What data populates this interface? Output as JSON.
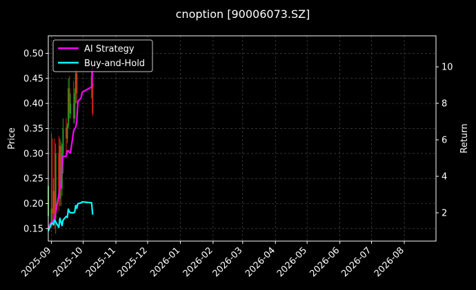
{
  "chart_data": {
    "type": "line",
    "title": "cnoption [90006073.SZ]",
    "ylabel": "Price",
    "y2label": "Return",
    "ylim": [
      0.125,
      0.535
    ],
    "y2lim": [
      0.45,
      11.7
    ],
    "xlim": [
      "2025-08-29",
      "2026-08-31"
    ],
    "background": "#000000",
    "grid": true,
    "legend_position": "top-left",
    "yticks": [
      0.15,
      0.2,
      0.25,
      0.3,
      0.35,
      0.4,
      0.45,
      0.5
    ],
    "y2ticks": [
      2,
      4,
      6,
      8,
      10
    ],
    "xticks": [
      "2025-09",
      "2025-10",
      "2025-11",
      "2025-12",
      "2026-01",
      "2026-02",
      "2026-03",
      "2026-04",
      "2026-05",
      "2026-06",
      "2026-07",
      "2026-08"
    ],
    "xtick_dates": [
      "2025-09-01",
      "2025-10-01",
      "2025-11-01",
      "2025-12-01",
      "2026-01-01",
      "2026-02-01",
      "2026-03-01",
      "2026-04-01",
      "2026-05-01",
      "2026-06-01",
      "2026-07-01",
      "2026-08-01"
    ],
    "candles": [
      {
        "date": "2025-08-29",
        "open": 0.175,
        "high": 0.245,
        "low": 0.155,
        "close": 0.235
      },
      {
        "date": "2025-09-01",
        "open": 0.165,
        "high": 0.34,
        "low": 0.16,
        "close": 0.19
      },
      {
        "date": "2025-09-02",
        "open": 0.19,
        "high": 0.33,
        "low": 0.155,
        "close": 0.18
      },
      {
        "date": "2025-09-03",
        "open": 0.18,
        "high": 0.25,
        "low": 0.165,
        "close": 0.225
      },
      {
        "date": "2025-09-04",
        "open": 0.225,
        "high": 0.33,
        "low": 0.15,
        "close": 0.165
      },
      {
        "date": "2025-09-05",
        "open": 0.17,
        "high": 0.32,
        "low": 0.14,
        "close": 0.3
      },
      {
        "date": "2025-09-08",
        "open": 0.3,
        "high": 0.335,
        "low": 0.185,
        "close": 0.21
      },
      {
        "date": "2025-09-09",
        "open": 0.21,
        "high": 0.33,
        "low": 0.195,
        "close": 0.315
      },
      {
        "date": "2025-09-10",
        "open": 0.315,
        "high": 0.325,
        "low": 0.195,
        "close": 0.23
      },
      {
        "date": "2025-09-11",
        "open": 0.23,
        "high": 0.32,
        "low": 0.215,
        "close": 0.3
      },
      {
        "date": "2025-09-12",
        "open": 0.3,
        "high": 0.37,
        "low": 0.26,
        "close": 0.35
      },
      {
        "date": "2025-09-15",
        "open": 0.35,
        "high": 0.37,
        "low": 0.3,
        "close": 0.33
      },
      {
        "date": "2025-09-16",
        "open": 0.33,
        "high": 0.36,
        "low": 0.32,
        "close": 0.355
      },
      {
        "date": "2025-09-17",
        "open": 0.355,
        "high": 0.45,
        "low": 0.35,
        "close": 0.43
      },
      {
        "date": "2025-09-18",
        "open": 0.43,
        "high": 0.455,
        "low": 0.37,
        "close": 0.38
      },
      {
        "date": "2025-09-19",
        "open": 0.38,
        "high": 0.42,
        "low": 0.37,
        "close": 0.4
      },
      {
        "date": "2025-09-22",
        "open": 0.4,
        "high": 0.445,
        "low": 0.36,
        "close": 0.37
      },
      {
        "date": "2025-09-23",
        "open": 0.37,
        "high": 0.43,
        "low": 0.36,
        "close": 0.42
      },
      {
        "date": "2025-09-24",
        "open": 0.42,
        "high": 0.47,
        "low": 0.4,
        "close": 0.46
      },
      {
        "date": "2025-09-25",
        "open": 0.46,
        "high": 0.465,
        "low": 0.4,
        "close": 0.42
      },
      {
        "date": "2025-10-09",
        "open": 0.43,
        "high": 0.465,
        "low": 0.41,
        "close": 0.455
      },
      {
        "date": "2025-10-10",
        "open": 0.44,
        "high": 0.45,
        "low": 0.375,
        "close": 0.38
      }
    ],
    "series": [
      {
        "name": "AI Strategy",
        "color": "#ff00ff",
        "x": [
          "2025-08-29",
          "2025-09-01",
          "2025-09-02",
          "2025-09-03",
          "2025-09-04",
          "2025-09-05",
          "2025-09-08",
          "2025-09-09",
          "2025-09-10",
          "2025-09-11",
          "2025-09-12",
          "2025-09-15",
          "2025-09-16",
          "2025-09-17",
          "2025-09-18",
          "2025-09-19",
          "2025-09-22",
          "2025-09-23",
          "2025-09-24",
          "2025-09-25",
          "2025-09-26",
          "2025-09-29",
          "2025-09-30",
          "2025-10-09",
          "2025-10-10"
        ],
        "values": [
          1.2,
          1.5,
          1.55,
          1.55,
          1.7,
          2.0,
          3.0,
          3.4,
          3.5,
          4.7,
          5.1,
          5.1,
          5.4,
          5.4,
          5.3,
          5.3,
          6.5,
          6.6,
          6.7,
          7.0,
          8.1,
          8.3,
          8.6,
          8.9,
          10.0
        ]
      },
      {
        "name": "Buy-and-Hold",
        "color": "#00ffff",
        "x": [
          "2025-08-29",
          "2025-09-01",
          "2025-09-02",
          "2025-09-03",
          "2025-09-04",
          "2025-09-05",
          "2025-09-08",
          "2025-09-09",
          "2025-09-10",
          "2025-09-11",
          "2025-09-12",
          "2025-09-15",
          "2025-09-16",
          "2025-09-17",
          "2025-09-18",
          "2025-09-19",
          "2025-09-22",
          "2025-09-23",
          "2025-09-24",
          "2025-09-25",
          "2025-09-26",
          "2025-09-29",
          "2025-09-30",
          "2025-10-09",
          "2025-10-10"
        ],
        "values": [
          1.0,
          1.4,
          1.45,
          1.35,
          1.6,
          1.5,
          1.2,
          1.7,
          1.5,
          1.3,
          1.6,
          1.8,
          1.75,
          2.2,
          2.05,
          2.0,
          2.0,
          2.05,
          2.4,
          2.25,
          2.5,
          2.55,
          2.6,
          2.55,
          1.9
        ]
      }
    ]
  }
}
